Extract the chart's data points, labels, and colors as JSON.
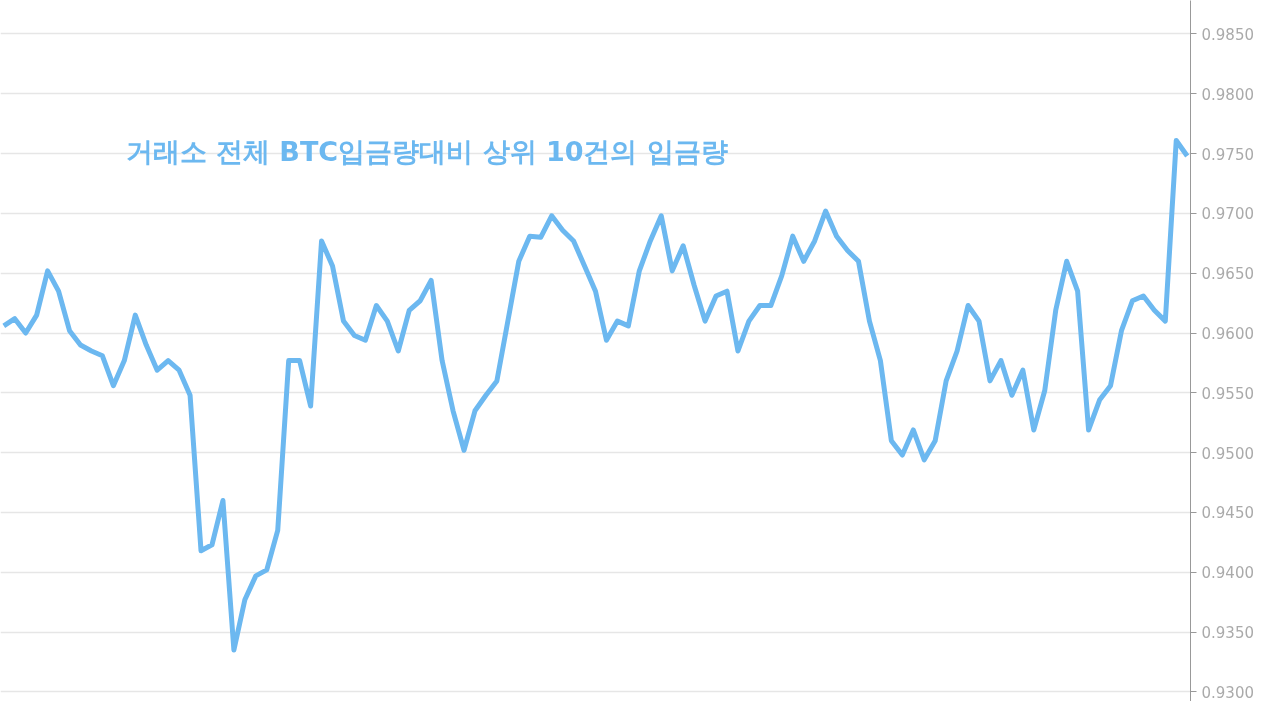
{
  "chart_data": {
    "type": "line",
    "title": "거래소 전체 BTC입금량대비 상위 10건의 입금량",
    "categories": [
      null,
      null,
      null,
      null,
      null,
      null,
      null,
      null,
      null,
      null,
      null,
      null,
      null,
      null,
      null,
      null,
      null,
      null,
      null,
      null,
      null,
      null,
      null,
      null,
      null,
      null,
      null,
      null,
      null,
      null,
      null,
      null,
      null,
      null,
      null,
      null,
      null,
      null,
      null,
      null,
      null,
      null,
      null,
      null,
      null,
      null,
      null,
      null,
      null,
      null,
      null,
      null,
      null,
      null,
      null,
      null,
      null,
      null,
      null,
      null,
      null,
      null,
      null,
      null,
      null,
      null,
      null,
      null,
      null,
      null,
      null,
      null,
      null,
      null,
      null,
      null,
      null,
      null,
      null,
      null,
      null,
      null,
      null,
      null,
      null,
      null,
      null,
      null,
      null,
      null,
      null,
      null,
      null,
      null,
      null,
      null,
      null,
      null,
      null,
      null,
      null,
      null,
      null,
      null,
      null,
      null,
      null,
      null,
      null
    ],
    "series": [
      {
        "color": "#6cb8f0",
        "values": [
          0.9606,
          0.9612,
          0.96,
          0.9615,
          0.9652,
          0.9635,
          0.9602,
          0.959,
          0.9585,
          0.9581,
          0.9556,
          0.9577,
          0.9615,
          0.959,
          0.9569,
          0.9577,
          0.9569,
          0.9548,
          0.9418,
          0.9423,
          0.946,
          0.9335,
          0.9377,
          0.9397,
          0.9402,
          0.9435,
          0.9577,
          0.9577,
          0.9539,
          0.9677,
          0.9656,
          0.961,
          0.9598,
          0.9594,
          0.9623,
          0.961,
          0.9585,
          0.9619,
          0.9627,
          0.9644,
          0.9577,
          0.9535,
          0.9502,
          0.9535,
          0.9548,
          0.956,
          0.961,
          0.966,
          0.9681,
          0.968,
          0.9698,
          0.9686,
          0.9677,
          0.9656,
          0.9635,
          0.9594,
          0.961,
          0.9606,
          0.9652,
          0.9677,
          0.9698,
          0.9652,
          0.9673,
          0.964,
          0.961,
          0.9631,
          0.9635,
          0.9585,
          0.961,
          0.9623,
          0.9623,
          0.9648,
          0.9681,
          0.966,
          0.9677,
          0.9702,
          0.9681,
          0.9669,
          0.966,
          0.961,
          0.9577,
          0.951,
          0.9498,
          0.9519,
          0.9494,
          0.951,
          0.956,
          0.9585,
          0.9623,
          0.961,
          0.956,
          0.9577,
          0.9548,
          0.9569,
          0.9519,
          0.9552,
          0.9619,
          0.966,
          0.9635,
          0.9519,
          0.9544,
          0.9556,
          0.9602,
          0.9627,
          0.9631,
          0.9619,
          0.961,
          0.9761,
          0.9748
        ]
      }
    ],
    "ylim": [
      0.9292,
      0.9878
    ],
    "yticks": [
      {
        "value": 0.93,
        "label": "0.9300"
      },
      {
        "value": 0.935,
        "label": "0.9350"
      },
      {
        "value": 0.94,
        "label": "0.9400"
      },
      {
        "value": 0.945,
        "label": "0.9450"
      },
      {
        "value": 0.95,
        "label": "0.9500"
      },
      {
        "value": 0.955,
        "label": "0.9550"
      },
      {
        "value": 0.96,
        "label": "0.9600"
      },
      {
        "value": 0.965,
        "label": "0.9650"
      },
      {
        "value": 0.97,
        "label": "0.9700"
      },
      {
        "value": 0.975,
        "label": "0.9750"
      },
      {
        "value": 0.98,
        "label": "0.9800"
      },
      {
        "value": 0.985,
        "label": "0.9850"
      }
    ],
    "tick_labels": "y",
    "grid": "y",
    "marker": "none",
    "line_style": "solid"
  }
}
